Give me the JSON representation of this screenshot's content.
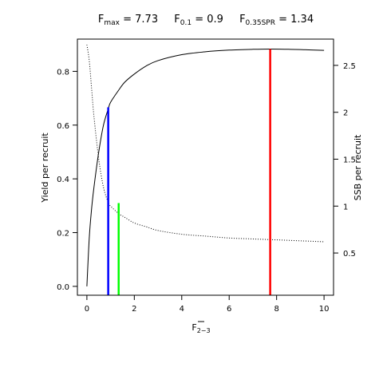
{
  "chart_data": {
    "type": "line",
    "title": {
      "fmax_sub": "max",
      "fmax_val": "7.73",
      "f01_sub": "0.1",
      "f01_val": "0.9",
      "fspr_sub": "0.35SPR",
      "fspr_val": "1.34"
    },
    "xlabel_sub": "2−3",
    "ylabel_left": "Yield per recruit",
    "ylabel_right": "SSB per recruit",
    "xlim": [
      -0.4,
      10.4
    ],
    "ylim_left": [
      -0.033,
      0.92
    ],
    "ylim_right": [
      0.05,
      2.78
    ],
    "x_ticks": [
      "0",
      "2",
      "4",
      "6",
      "8",
      "10"
    ],
    "y_left_ticks": [
      "0.0",
      "0.2",
      "0.4",
      "0.6",
      "0.8"
    ],
    "y_right_ticks": [
      "0.5",
      "1",
      "1.5",
      "2",
      "2.5"
    ],
    "ypr_curve": {
      "name": "Yield per recruit",
      "style": "solid",
      "color": "#000000",
      "x": [
        0,
        0.1,
        0.2,
        0.3,
        0.5,
        0.7,
        0.9,
        1.0,
        1.34,
        1.6,
        2.0,
        2.5,
        3.0,
        4.0,
        5.0,
        6.0,
        7.0,
        7.73,
        8.5,
        9.0,
        10.0
      ],
      "y": [
        0.0,
        0.18,
        0.29,
        0.37,
        0.5,
        0.6,
        0.66,
        0.685,
        0.73,
        0.76,
        0.79,
        0.82,
        0.84,
        0.862,
        0.873,
        0.879,
        0.882,
        0.883,
        0.882,
        0.881,
        0.878
      ]
    },
    "spr_curve": {
      "name": "SSB per recruit",
      "style": "dotted",
      "color": "#000000",
      "x": [
        0,
        0.1,
        0.2,
        0.3,
        0.5,
        0.7,
        0.9,
        1.0,
        1.34,
        1.6,
        2.0,
        2.5,
        3.0,
        4.0,
        5.0,
        6.0,
        7.0,
        8.0,
        9.0,
        10.0
      ],
      "y": [
        2.72,
        2.55,
        2.25,
        1.95,
        1.5,
        1.2,
        1.04,
        1.0,
        0.92,
        0.88,
        0.82,
        0.78,
        0.74,
        0.7,
        0.68,
        0.66,
        0.65,
        0.64,
        0.63,
        0.62
      ]
    },
    "reference_lines": [
      {
        "name": "F0.1",
        "x": 0.9,
        "y_top": 0.666,
        "color": "#0000ff"
      },
      {
        "name": "F0.35SPR",
        "x": 1.34,
        "y_top": 0.31,
        "color": "#00ff00"
      },
      {
        "name": "Fmax",
        "x": 7.73,
        "y_top": 0.883,
        "color": "#ff0000"
      }
    ],
    "grid": false,
    "legend": "none"
  }
}
